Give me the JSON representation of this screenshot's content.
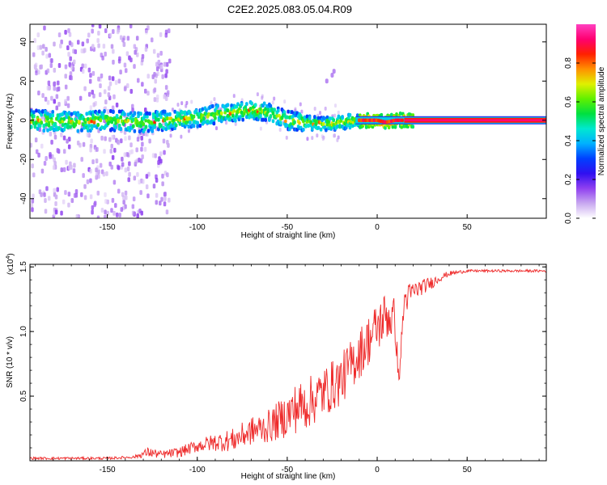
{
  "title": "C2E2.2025.083.05.04.R09",
  "chart_data": [
    {
      "type": "heatmap",
      "xlabel": "Height of straight line (km)",
      "ylabel": "Frequency (Hz)",
      "xlim": [
        -193,
        94
      ],
      "ylim": [
        -50,
        49
      ],
      "xticks": [
        -150,
        -100,
        -50,
        0,
        50
      ],
      "yticks": [
        -40,
        -20,
        0,
        20,
        40
      ],
      "colorbar": {
        "label": "Normalized spectral amplitude",
        "range": [
          0.0,
          1.0
        ],
        "ticks": [
          0.0,
          0.2,
          0.4,
          0.6,
          0.8
        ],
        "colors": [
          "#ffffff",
          "#c8a8f0",
          "#9040f0",
          "#3010f0",
          "#0040ff",
          "#00b0ff",
          "#00e8d0",
          "#00e040",
          "#60f000",
          "#e0f000",
          "#ff9000",
          "#ff2000",
          "#ff0070",
          "#ff40c0"
        ]
      },
      "ridge": {
        "x": [
          -190,
          -170,
          -150,
          -130,
          -115,
          -100,
          -90,
          -80,
          -70,
          -60,
          -50,
          -40,
          -30,
          -20,
          -10,
          0,
          5,
          10,
          20,
          40,
          60,
          80,
          94
        ],
        "y": [
          0,
          -1,
          0,
          -1,
          0,
          1,
          3,
          4,
          5,
          4,
          0,
          -1,
          -2,
          -1,
          0,
          0,
          -1,
          0,
          0,
          0,
          0,
          0,
          0
        ]
      },
      "side_feature": {
        "x": [
          -28,
          -25,
          -24
        ],
        "y": [
          20,
          23,
          25
        ]
      }
    },
    {
      "type": "line",
      "xlabel": "Height of straight line (km)",
      "ylabel": "SNR (10 * v/v)",
      "scale_label": "(x10",
      "scale_exp": "4",
      "xlim": [
        -193,
        94
      ],
      "ylim": [
        0,
        1.52
      ],
      "xticks": [
        -150,
        -100,
        -50,
        0,
        50
      ],
      "yticks": [
        0.5,
        1.0,
        1.5
      ],
      "series": [
        {
          "color": "#ee2a2a",
          "x": [
            -193,
            -180,
            -165,
            -150,
            -135,
            -127,
            -120,
            -110,
            -100,
            -90,
            -80,
            -70,
            -60,
            -50,
            -45,
            -40,
            -30,
            -25,
            -20,
            -15,
            -10,
            -5,
            0,
            5,
            10,
            12,
            15,
            20,
            25,
            30,
            35,
            40,
            50,
            60,
            70,
            80,
            94
          ],
          "y": [
            0.02,
            0.02,
            0.02,
            0.02,
            0.03,
            0.07,
            0.05,
            0.07,
            0.12,
            0.15,
            0.17,
            0.24,
            0.28,
            0.37,
            0.43,
            0.45,
            0.55,
            0.6,
            0.65,
            0.75,
            0.85,
            0.95,
            1.05,
            1.15,
            1.1,
            0.6,
            1.25,
            1.32,
            1.35,
            1.38,
            1.42,
            1.45,
            1.47,
            1.47,
            1.47,
            1.47,
            1.47
          ],
          "noise": [
            0.01,
            0.01,
            0.01,
            0.01,
            0.01,
            0.04,
            0.03,
            0.04,
            0.05,
            0.07,
            0.09,
            0.11,
            0.13,
            0.17,
            0.2,
            0.2,
            0.2,
            0.2,
            0.2,
            0.2,
            0.2,
            0.2,
            0.2,
            0.2,
            0.18,
            0.05,
            0.12,
            0.08,
            0.06,
            0.05,
            0.03,
            0.02,
            0.01,
            0.01,
            0.01,
            0.01,
            0.01
          ]
        }
      ]
    }
  ]
}
